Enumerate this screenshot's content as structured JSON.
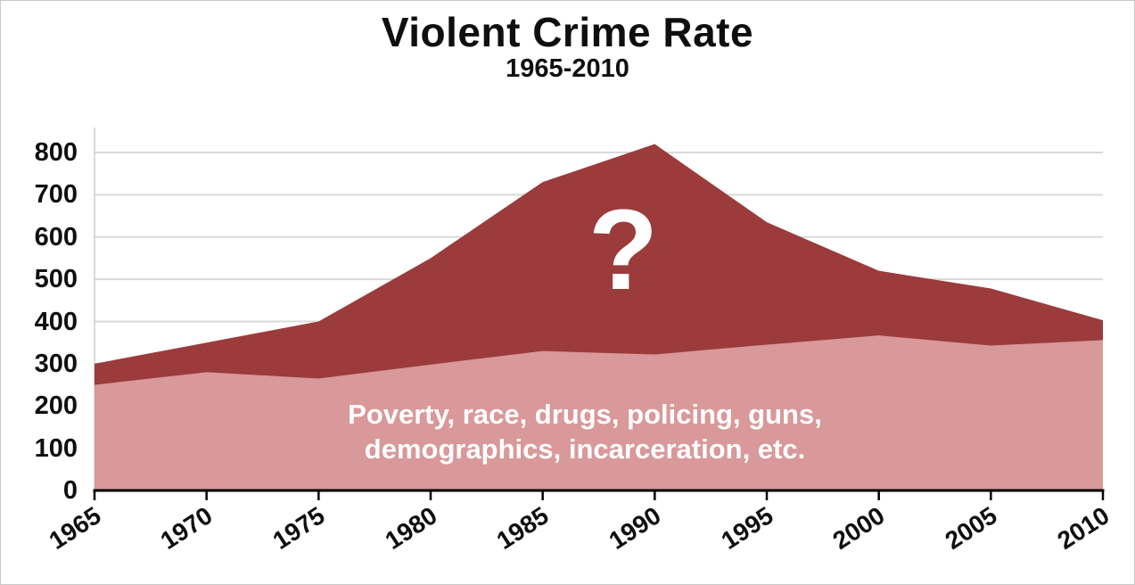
{
  "header": {
    "title": "Violent Crime Rate",
    "subtitle": "1965-2010"
  },
  "annotations": {
    "unexplained_label": "?",
    "explained_line1": "Poverty, race, drugs, policing, guns,",
    "explained_line2": "demographics, incarceration, etc."
  },
  "colors": {
    "unexplained_area": "#9b3b3c",
    "explained_area": "#d99899",
    "gridline": "#d9d9d9",
    "axis_line": "#000000",
    "y_axis_line": "#cfcfcf",
    "label_text": "#0f0f0f",
    "annotation_text": "#ffffff",
    "frame_border": "#c9c9c9",
    "background": "#ffffff"
  },
  "chart_data": {
    "type": "area",
    "title": "Violent Crime Rate",
    "subtitle": "1965-2010",
    "x": [
      1965,
      1970,
      1975,
      1980,
      1985,
      1990,
      1995,
      2000,
      2005,
      2010
    ],
    "x_tick_labels": [
      "1965",
      "1970",
      "1975",
      "1980",
      "1985",
      "1990",
      "1995",
      "2000",
      "2005",
      "2010"
    ],
    "y_ticks": [
      0,
      100,
      200,
      300,
      400,
      500,
      600,
      700,
      800
    ],
    "y_tick_labels": [
      "0",
      "100",
      "200",
      "300",
      "400",
      "500",
      "600",
      "700",
      "800"
    ],
    "ylim": [
      0,
      800
    ],
    "xlabel": "",
    "ylabel": "",
    "grid": "horizontal",
    "legend": "none",
    "series": [
      {
        "name": "Total violent crime rate (upper dark-red band labeled ?)",
        "color": "#9b3b3c",
        "values": [
          300,
          350,
          400,
          550,
          730,
          820,
          635,
          520,
          478,
          403
        ]
      },
      {
        "name": "Portion attributed to poverty, race, drugs, policing, guns, demographics, incarceration, etc. (lower pink band)",
        "color": "#d99899",
        "values": [
          250,
          280,
          265,
          298,
          330,
          322,
          345,
          367,
          343,
          356
        ]
      }
    ]
  }
}
